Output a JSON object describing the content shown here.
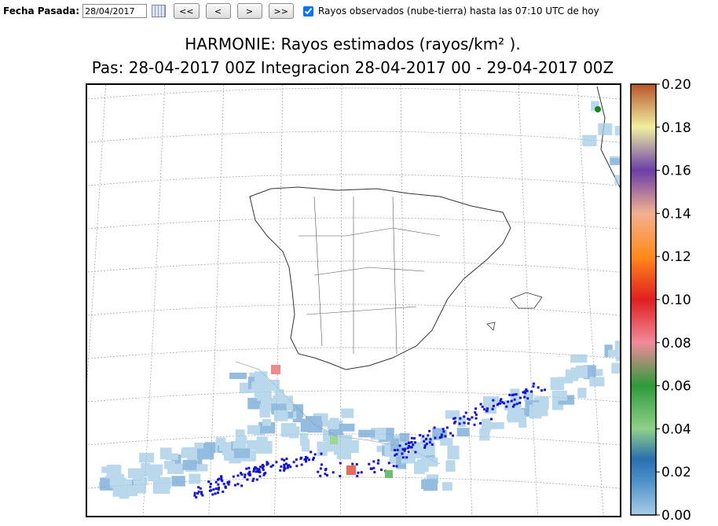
{
  "toolbar": {
    "date_label": "Fecha Pasada:",
    "date_value": "28/04/2017",
    "buttons": [
      "<<",
      "<",
      ">",
      ">>"
    ],
    "checkbox_checked": true,
    "checkbox_label": "Rayos observados (nube-tierra) hasta las 07:10 UTC de hoy"
  },
  "map": {
    "title": "HARMONIE: Rayos estimados  (rayos/km² ).",
    "subtitle": "Pas: 28-04-2017 00Z Integracion 28-04-2017 00 - 29-04-2017 00Z",
    "colorbar": {
      "lim": [
        0,
        0.2
      ],
      "ticks": [
        {
          "value": 0,
          "label": "0.00"
        },
        {
          "value": 0.02,
          "label": "0.02"
        },
        {
          "value": 0.04,
          "label": "0.04"
        },
        {
          "value": 0.06,
          "label": "0.06"
        },
        {
          "value": 0.08,
          "label": "0.08"
        },
        {
          "value": 0.1,
          "label": "0.10"
        },
        {
          "value": 0.12,
          "label": "0.12"
        },
        {
          "value": 0.14,
          "label": "0.14"
        },
        {
          "value": 0.16,
          "label": "0.16"
        },
        {
          "value": 0.18,
          "label": "0.18"
        },
        {
          "value": 0.2,
          "label": "0.20"
        }
      ]
    }
  }
}
